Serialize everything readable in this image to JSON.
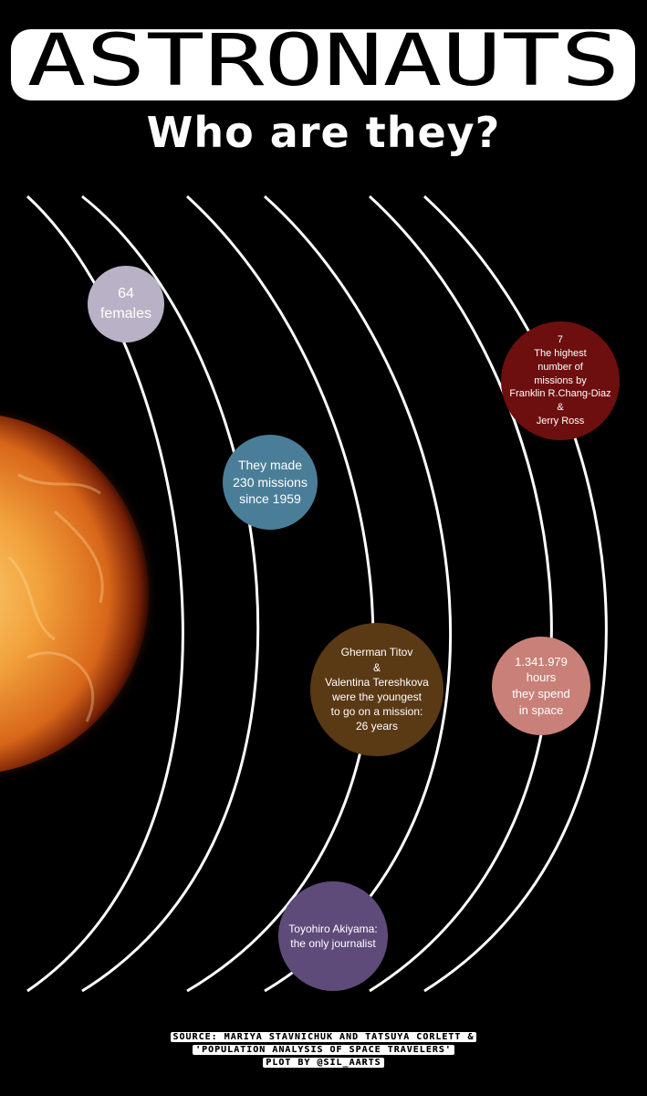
{
  "header": {
    "title": "ASTRONAUTS",
    "subtitle": "Who are they?"
  },
  "planets": [
    {
      "id": "females",
      "text": "64\nfemales",
      "color": "#b9b2c6"
    },
    {
      "id": "missions",
      "text": "They made\n230 missions\nsince 1959",
      "color": "#4a7e98"
    },
    {
      "id": "highest",
      "text": "7\nThe highest\nnumber of\nmissions by\nFranklin R.Chang-Diaz\n&\nJerry Ross",
      "color": "#6e0f0f"
    },
    {
      "id": "youngest",
      "text": "Gherman Titov\n&\nValentina Tereshkova\nwere the youngest\nto go on a mission:\n26 years",
      "color": "#5a3915"
    },
    {
      "id": "hours",
      "text": "1.341.979\nhours\nthey spend\nin space",
      "color": "#c98078"
    },
    {
      "id": "journalist",
      "text": "Toyohiro Akiyama:\nthe only journalist",
      "color": "#5f4b7a"
    }
  ],
  "footer": {
    "source_line1": "SOURCE: MARIYA STAVNICHUK AND TATSUYA CORLETT &",
    "source_line2": "'POPULATION ANALYSIS OF SPACE TRAVELERS'",
    "source_line3": "PLOT BY @SIL_AARTS"
  },
  "colors": {
    "background": "#000000",
    "orbit": "#ffffff",
    "sun_core": "#f6a93a",
    "sun_edge": "#8a2a05"
  }
}
